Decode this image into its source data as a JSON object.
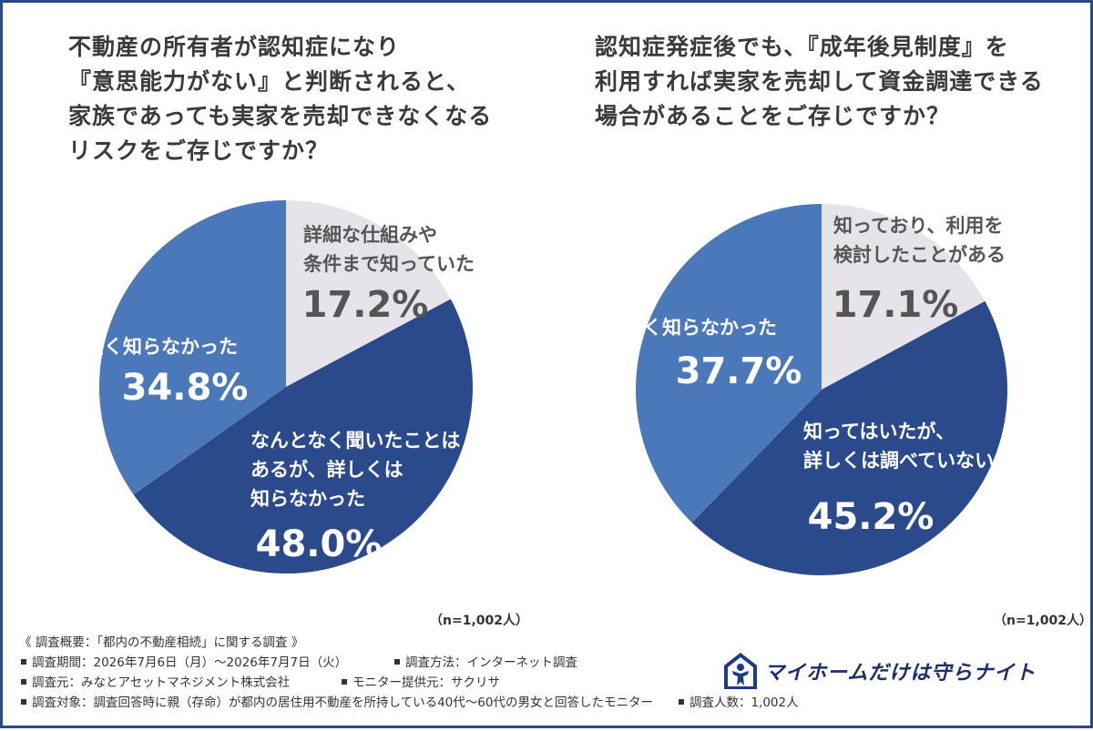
{
  "questions": [
    {
      "lines": [
        "不動産の所有者が認知症になり",
        "『意思能力がない』と判断されると、",
        "家族であっても実家を売却できなくなる",
        "リスクをご存じですか？"
      ]
    },
    {
      "lines": [
        "認知症発症後でも、『成年後見制度』を",
        "利用すれば実家を売却して資金調達できる",
        "場合があることをご存じですか？"
      ]
    }
  ],
  "n_labels": [
    "（n=1,002人）",
    "（n=1,002人）"
  ],
  "colors": {
    "light": "#e6e4ea",
    "dark": "#2b4a8c",
    "mid": "#4b78b8",
    "text_dark": "#555555",
    "text_light": "#ffffff",
    "frame": "#2c4a8a"
  },
  "chart_data": [
    {
      "type": "pie",
      "start": "12 o'clock, clockwise",
      "slices": [
        {
          "label_lines": [
            "詳細な仕組みや",
            "条件まで知っていた"
          ],
          "value": 17.2,
          "value_text": "17.2%",
          "color": "#e6e4ea"
        },
        {
          "label_lines": [
            "なんとなく聞いたことは",
            "あるが、詳しくは",
            "知らなかった"
          ],
          "value": 48.0,
          "value_text": "48.0%",
          "color": "#2b4a8c"
        },
        {
          "label_lines": [
            "全く知らなかった"
          ],
          "value": 34.8,
          "value_text": "34.8%",
          "color": "#4b78b8"
        }
      ]
    },
    {
      "type": "pie",
      "start": "12 o'clock, clockwise",
      "slices": [
        {
          "label_lines": [
            "知っており、利用を",
            "検討したことがある"
          ],
          "value": 17.1,
          "value_text": "17.1%",
          "color": "#e6e4ea"
        },
        {
          "label_lines": [
            "知ってはいたが、",
            "詳しくは調べていない"
          ],
          "value": 45.2,
          "value_text": "45.2%",
          "color": "#2b4a8c"
        },
        {
          "label_lines": [
            "全く知らなかった"
          ],
          "value": 37.7,
          "value_text": "37.7%",
          "color": "#4b78b8"
        }
      ]
    }
  ],
  "footer": {
    "title": "《 調査概要：「都内の不動産相続」に関する調査 》",
    "items": [
      [
        "調査期間：2026年7月6日（月）～2026年7月7日（火）",
        "調査方法：インターネット調査"
      ],
      [
        "調査元：みなとアセットマネジメント株式会社",
        "モニター提供元：サクリサ"
      ],
      [
        "調査対象：調査回答時に親（存命）が都内の居住用不動産を所持している40代～60代の男女と回答したモニター",
        "調査人数：1,002人"
      ]
    ]
  },
  "logo": {
    "text": "マイホームだけは守らナイト",
    "icon": "house-person-logo-icon"
  }
}
